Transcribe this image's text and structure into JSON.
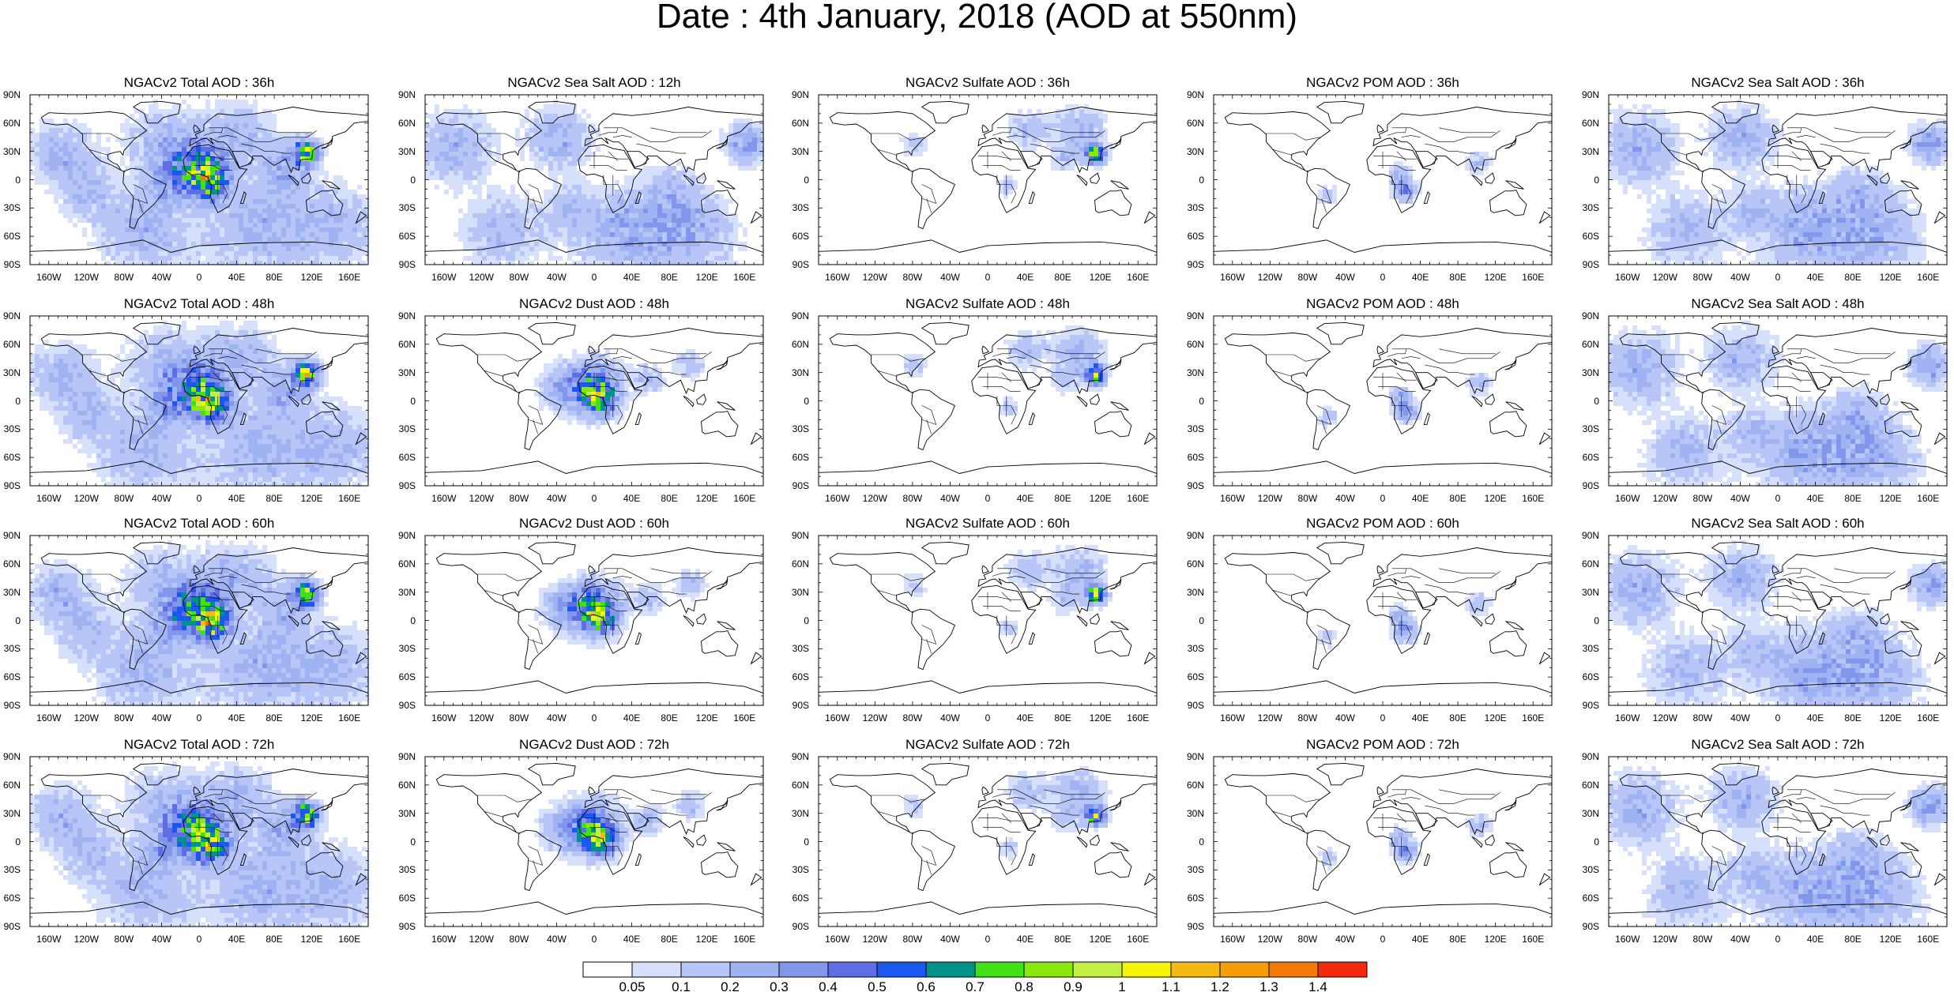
{
  "title": "Date : 4th January, 2018 (AOD at 550nm)",
  "panels": [
    [
      "NGACv2 Total AOD : 36h",
      "NGACv2 Sea Salt  AOD : 12h",
      "NGACv2 Sulfate AOD : 36h",
      "NGACv2 POM AOD : 36h",
      "NGACv2 Sea Salt AOD : 36h"
    ],
    [
      "NGACv2 Total AOD : 48h",
      "NGACv2 Dust AOD : 48h",
      "NGACv2 Sulfate AOD : 48h",
      "NGACv2 POM AOD : 48h",
      "NGACv2 Sea Salt AOD : 48h"
    ],
    [
      "NGACv2 Total AOD : 60h",
      "NGACv2 Dust AOD : 60h",
      "NGACv2 Sulfate AOD : 60h",
      "NGACv2 POM AOD : 60h",
      "NGACv2 Sea Salt AOD : 60h"
    ],
    [
      "NGACv2 Total AOD : 72h",
      "NGACv2 Dust AOD : 72h",
      "NGACv2 Sulfate AOD : 72h",
      "NGACv2 POM AOD : 72h",
      "NGACv2 Sea Salt  AOD : 72h"
    ]
  ],
  "lat_ticks": [
    "90N",
    "60N",
    "30N",
    "0",
    "30S",
    "60S",
    "90S"
  ],
  "lon_ticks": [
    "160W",
    "120W",
    "80W",
    "40W",
    "0",
    "40E",
    "80E",
    "120E",
    "160E"
  ],
  "colorbar": {
    "labels": [
      "0.05",
      "0.1",
      "0.2",
      "0.3",
      "0.4",
      "0.5",
      "0.6",
      "0.7",
      "0.8",
      "0.9",
      "1",
      "1.1",
      "1.2",
      "1.3",
      "1.4"
    ],
    "colors": [
      "#ffffff",
      "#d6e0fb",
      "#b7c6f6",
      "#9fb2f1",
      "#8296ec",
      "#5e6fe6",
      "#1c58ee",
      "#00928b",
      "#43e016",
      "#8be80f",
      "#c3ef46",
      "#f7f407",
      "#f6b812",
      "#f69e0a",
      "#f47a07",
      "#f42a0c"
    ]
  }
}
